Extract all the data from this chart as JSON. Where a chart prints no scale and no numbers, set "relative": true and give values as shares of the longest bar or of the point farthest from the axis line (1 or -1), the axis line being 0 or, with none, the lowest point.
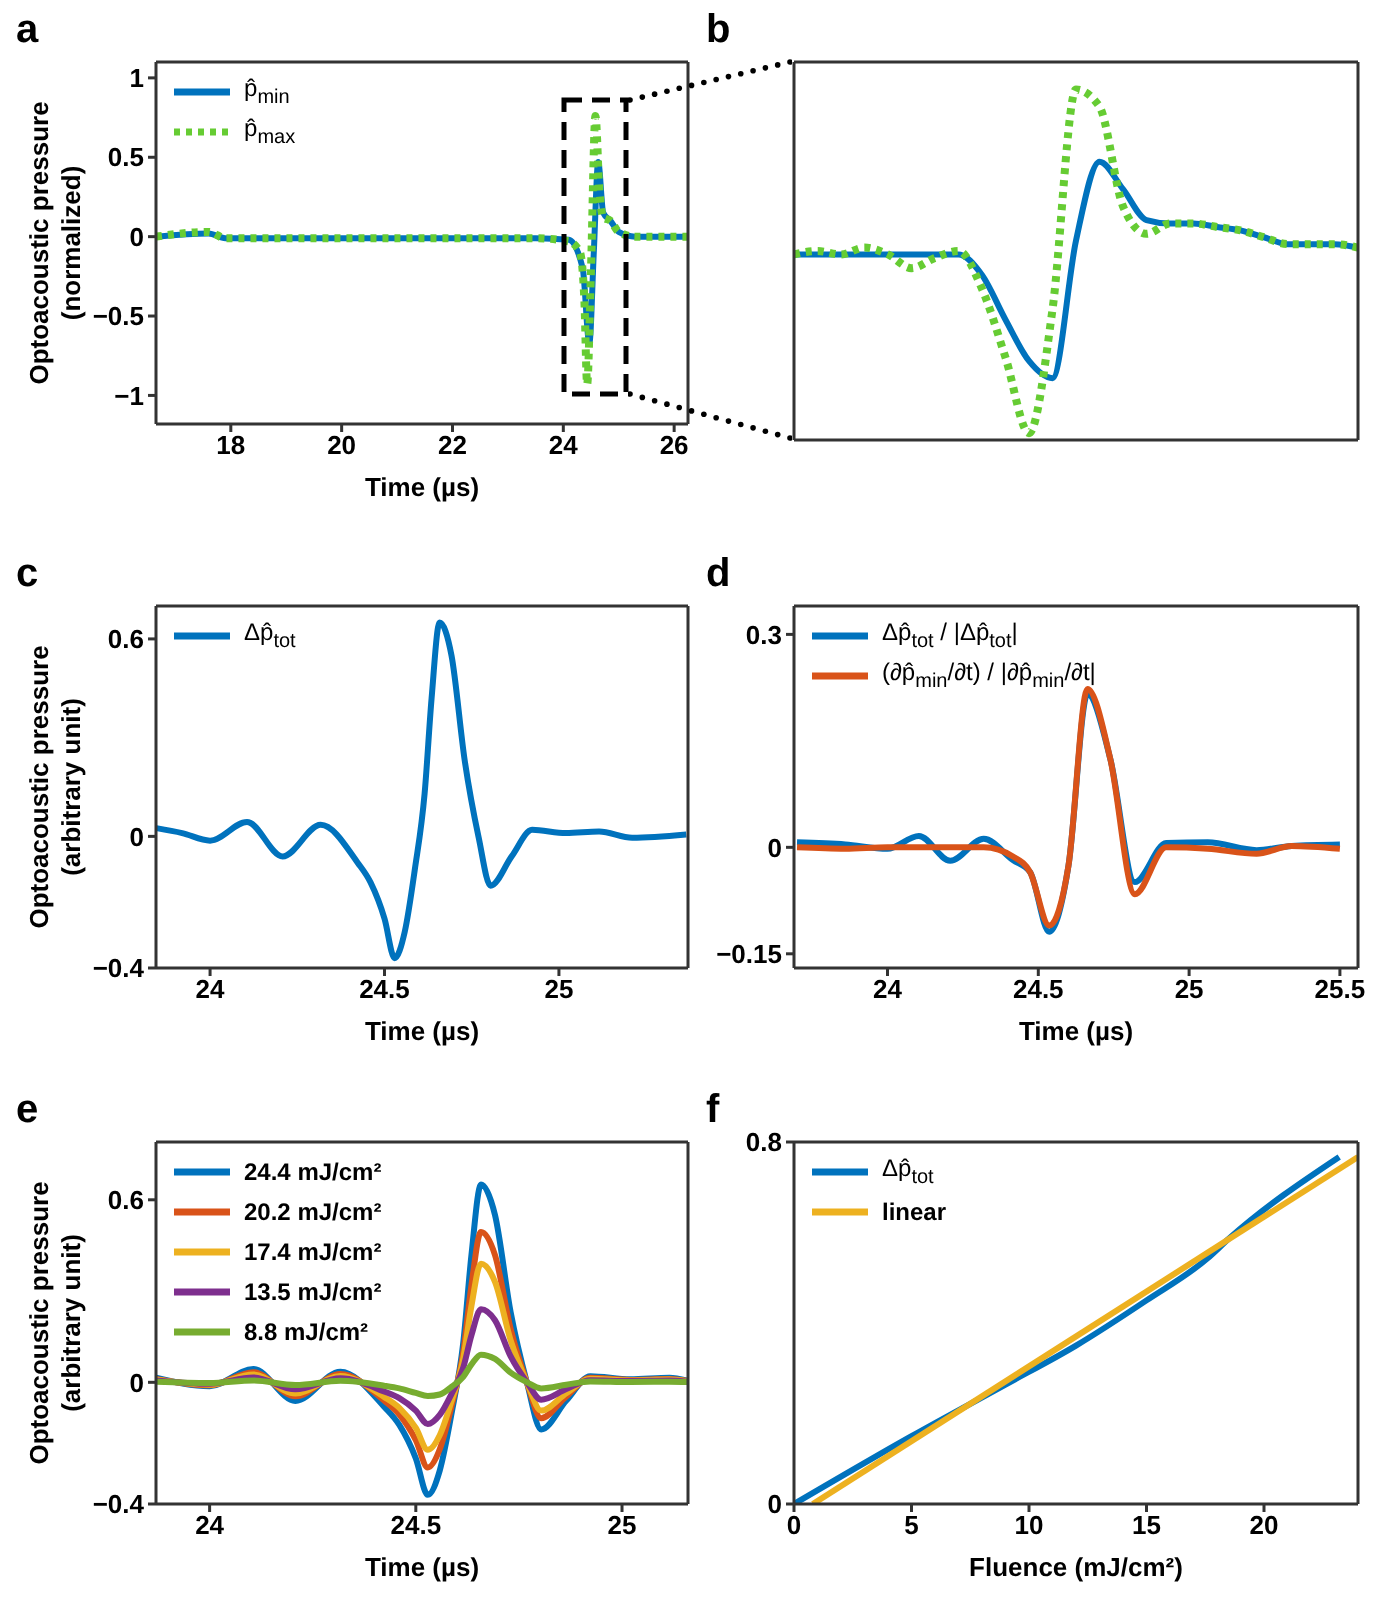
{
  "chart_data": [
    {
      "type": "line",
      "title": "a",
      "xlabel": "Time (µs)",
      "ylabel": "Optoacoustic pressure (normalized)",
      "xlim": [
        16.65,
        26.25
      ],
      "xticks": [
        18,
        20,
        22,
        24,
        26
      ],
      "ylim": [
        -1.18,
        1.1
      ],
      "yticks": [
        -1,
        -0.5,
        0,
        0.5,
        1
      ],
      "legend": "top left",
      "grid": false,
      "marker": "none",
      "series": [
        {
          "name": "p̂$_{min}$",
          "color": "#0072bd",
          "line_style": "solid",
          "x": [
            16.65,
            17.6,
            17.9,
            23.5,
            24.1,
            24.35,
            24.47,
            24.55,
            24.63,
            24.72,
            24.85,
            25.0,
            25.3,
            26.25
          ],
          "values": [
            0,
            0.02,
            -0.01,
            -0.01,
            -0.02,
            -0.2,
            -0.67,
            -0.1,
            0.47,
            0.15,
            0.1,
            0.03,
            0,
            0
          ]
        },
        {
          "name": "p̂$_{max}$",
          "color": "#66cc33",
          "line_style": "dotted",
          "x": [
            16.65,
            17.6,
            17.9,
            23.5,
            24.1,
            24.3,
            24.38,
            24.43,
            24.5,
            24.58,
            24.65,
            24.72,
            24.85,
            25.0,
            25.3,
            26.25
          ],
          "values": [
            0,
            0.03,
            -0.01,
            -0.01,
            -0.03,
            -0.1,
            -0.4,
            -0.93,
            -0.2,
            0.76,
            0.3,
            0.12,
            0.1,
            0.03,
            0,
            0
          ]
        }
      ]
    },
    {
      "type": "line",
      "title": "b",
      "relative": true,
      "legend": false,
      "grid": false,
      "marker": "none",
      "categories": [
        null,
        null,
        null,
        null,
        null,
        null,
        null,
        null,
        null,
        null,
        null,
        null,
        null,
        null,
        null,
        null,
        null,
        null,
        null,
        null,
        null,
        null,
        null,
        null,
        null
      ],
      "series": [
        {
          "color": "#0072bd",
          "line_style": "solid",
          "values": [
            0.52,
            0.52,
            0.52,
            0.52,
            0.52,
            0.52,
            0.52,
            0.52,
            0.46,
            0.33,
            0.21,
            0.16,
            0.56,
            0.79,
            0.71,
            0.62,
            0.61,
            0.61,
            0.6,
            0.59,
            0.57,
            0.55,
            0.55,
            0.55,
            0.54
          ]
        },
        {
          "color": "#66cc33",
          "line_style": "dotted",
          "values": [
            0.52,
            0.53,
            0.52,
            0.54,
            0.52,
            0.48,
            0.51,
            0.53,
            0.42,
            0.22,
            0,
            0.36,
            1,
            0.95,
            0.66,
            0.58,
            0.61,
            0.61,
            0.6,
            0.59,
            0.57,
            0.55,
            0.55,
            0.55,
            0.54
          ]
        }
      ]
    },
    {
      "type": "line",
      "title": "c",
      "xlabel": "Time (µs)",
      "ylabel": "Optoacoustic pressure (arbitrary unit)",
      "xlim": [
        23.845,
        25.37
      ],
      "xticks": [
        24,
        24.5,
        25
      ],
      "ylim": [
        -0.4,
        0.7
      ],
      "yticks": [
        -0.4,
        0,
        0.6
      ],
      "legend": "top left",
      "grid": false,
      "marker": "none",
      "series": [
        {
          "name": "Δp̂$_{tot}$",
          "color": "#0072bd",
          "line_style": "solid",
          "x": [
            23.846,
            23.92,
            24.0,
            24.106,
            24.208,
            24.317,
            24.423,
            24.46,
            24.5,
            24.529,
            24.558,
            24.587,
            24.615,
            24.635,
            24.658,
            24.692,
            24.73,
            24.77,
            24.804,
            24.865,
            24.923,
            25.02,
            25.115,
            25.21,
            25.365
          ],
          "values": [
            0.025,
            0.01,
            -0.013,
            0.044,
            -0.061,
            0.035,
            -0.08,
            -0.14,
            -0.25,
            -0.37,
            -0.29,
            -0.1,
            0.13,
            0.42,
            0.65,
            0.55,
            0.23,
            -0.004,
            -0.15,
            -0.06,
            0.02,
            0.01,
            0.015,
            -0.004,
            0.006
          ]
        }
      ]
    },
    {
      "type": "line",
      "title": "d",
      "xlabel": "Time (µs)",
      "xlim": [
        23.69,
        25.56
      ],
      "xticks": [
        24,
        24.5,
        25,
        25.5
      ],
      "ylim": [
        -0.17,
        0.34
      ],
      "yticks": [
        -0.15,
        0,
        0.3
      ],
      "legend": "top left",
      "grid": false,
      "marker": "none",
      "series": [
        {
          "name": "Δp̂$_{tot}$ / |Δp̂$_{tot}$|",
          "color": "#0072bd",
          "line_style": "solid",
          "x": [
            23.7,
            23.86,
            24.0,
            24.104,
            24.208,
            24.319,
            24.416,
            24.473,
            24.536,
            24.6,
            24.663,
            24.739,
            24.82,
            24.924,
            25.062,
            25.224,
            25.34,
            25.5
          ],
          "values": [
            0.007,
            0.004,
            -0.002,
            0.016,
            -0.019,
            0.012,
            -0.018,
            -0.035,
            -0.119,
            -0.026,
            0.216,
            0.124,
            -0.049,
            0.006,
            0.007,
            -0.004,
            0.002,
            0.004
          ]
        },
        {
          "name": "(∂p̂$_{min}$/∂t) / |∂p̂$_{min}$/∂t|",
          "color": "#d95319",
          "line_style": "solid",
          "x": [
            23.7,
            23.86,
            24.0,
            24.104,
            24.208,
            24.319,
            24.416,
            24.473,
            24.536,
            24.6,
            24.663,
            24.739,
            24.82,
            24.924,
            25.062,
            25.224,
            25.34,
            25.5
          ],
          "values": [
            0,
            -0.002,
            0,
            0,
            0,
            0,
            -0.013,
            -0.035,
            -0.11,
            -0.026,
            0.223,
            0.124,
            -0.066,
            0,
            -0.002,
            -0.009,
            0.002,
            -0.002
          ]
        }
      ]
    },
    {
      "type": "line",
      "title": "e",
      "xlabel": "Time (µs)",
      "ylabel": "Optoacoustic pressure (arbitrary unit)",
      "xlim": [
        23.87,
        25.16
      ],
      "xticks": [
        24,
        24.5,
        25
      ],
      "ylim": [
        -0.4,
        0.79
      ],
      "yticks": [
        -0.4,
        0,
        0.6
      ],
      "legend": "top left",
      "grid": false,
      "marker": "none",
      "x": [
        23.87,
        24.0,
        24.106,
        24.208,
        24.317,
        24.423,
        24.46,
        24.5,
        24.529,
        24.558,
        24.587,
        24.615,
        24.635,
        24.658,
        24.692,
        24.73,
        24.77,
        24.804,
        24.865,
        24.923,
        25.02,
        25.115,
        25.16
      ],
      "series": [
        {
          "name": "24.4 mJ/cm²",
          "color": "#0072bd",
          "line_style": "solid",
          "values": [
            0.015,
            -0.013,
            0.044,
            -0.061,
            0.035,
            -0.08,
            -0.14,
            -0.25,
            -0.37,
            -0.29,
            -0.1,
            0.13,
            0.42,
            0.65,
            0.55,
            0.23,
            -0.004,
            -0.155,
            -0.06,
            0.02,
            0.01,
            0.015,
            0.005
          ]
        },
        {
          "name": "20.2 mJ/cm²",
          "color": "#d95319",
          "line_style": "solid",
          "values": [
            0.011,
            -0.01,
            0.033,
            -0.046,
            0.027,
            -0.06,
            -0.106,
            -0.19,
            -0.28,
            -0.22,
            -0.076,
            0.099,
            0.32,
            0.494,
            0.418,
            0.175,
            -0.003,
            -0.118,
            -0.046,
            0.015,
            0.008,
            0.011,
            0.004
          ]
        },
        {
          "name": "17.4 mJ/cm²",
          "color": "#edb120",
          "line_style": "solid",
          "values": [
            0.009,
            -0.008,
            0.026,
            -0.037,
            0.021,
            -0.048,
            -0.084,
            -0.15,
            -0.222,
            -0.174,
            -0.06,
            0.078,
            0.252,
            0.39,
            0.33,
            0.138,
            -0.002,
            -0.093,
            -0.036,
            0.012,
            0.006,
            0.009,
            0.003
          ]
        },
        {
          "name": "13.5 mJ/cm²",
          "color": "#7e2f8e",
          "line_style": "solid",
          "values": [
            0.006,
            -0.005,
            0.016,
            -0.023,
            0.013,
            -0.03,
            -0.052,
            -0.093,
            -0.137,
            -0.107,
            -0.037,
            0.048,
            0.155,
            0.24,
            0.204,
            0.085,
            -0.001,
            -0.057,
            -0.022,
            0.007,
            0.004,
            0.006,
            0.002
          ]
        },
        {
          "name": "8.8 mJ/cm²",
          "color": "#77ac30",
          "line_style": "solid",
          "values": [
            0.002,
            -0.002,
            0.006,
            -0.009,
            0.005,
            -0.011,
            -0.02,
            -0.035,
            -0.045,
            -0.04,
            -0.014,
            0.018,
            0.059,
            0.091,
            0.077,
            0.032,
            0,
            -0.02,
            -0.008,
            0.003,
            0.001,
            0.002,
            0.001
          ]
        }
      ]
    },
    {
      "type": "line",
      "title": "f",
      "xlabel": "Fluence (mJ/cm²)",
      "xlim": [
        0,
        24
      ],
      "xticks": [
        0,
        5,
        10,
        15,
        20
      ],
      "ylim": [
        0,
        0.8
      ],
      "yticks": [
        0,
        0.8
      ],
      "legend": "top left",
      "grid": false,
      "marker": "none",
      "series": [
        {
          "name": "Δp̂$_{tot}$",
          "color": "#0072bd",
          "line_style": "solid",
          "x": [
            0,
            5,
            9,
            12,
            15,
            17.6,
            18.5,
            23.2
          ],
          "values": [
            0,
            0.15,
            0.264,
            0.35,
            0.45,
            0.543,
            0.586,
            0.767
          ]
        },
        {
          "name": "linear",
          "color": "#edb120",
          "line_style": "solid",
          "x": [
            0.8,
            24
          ],
          "values": [
            0,
            0.767
          ]
        }
      ]
    }
  ]
}
